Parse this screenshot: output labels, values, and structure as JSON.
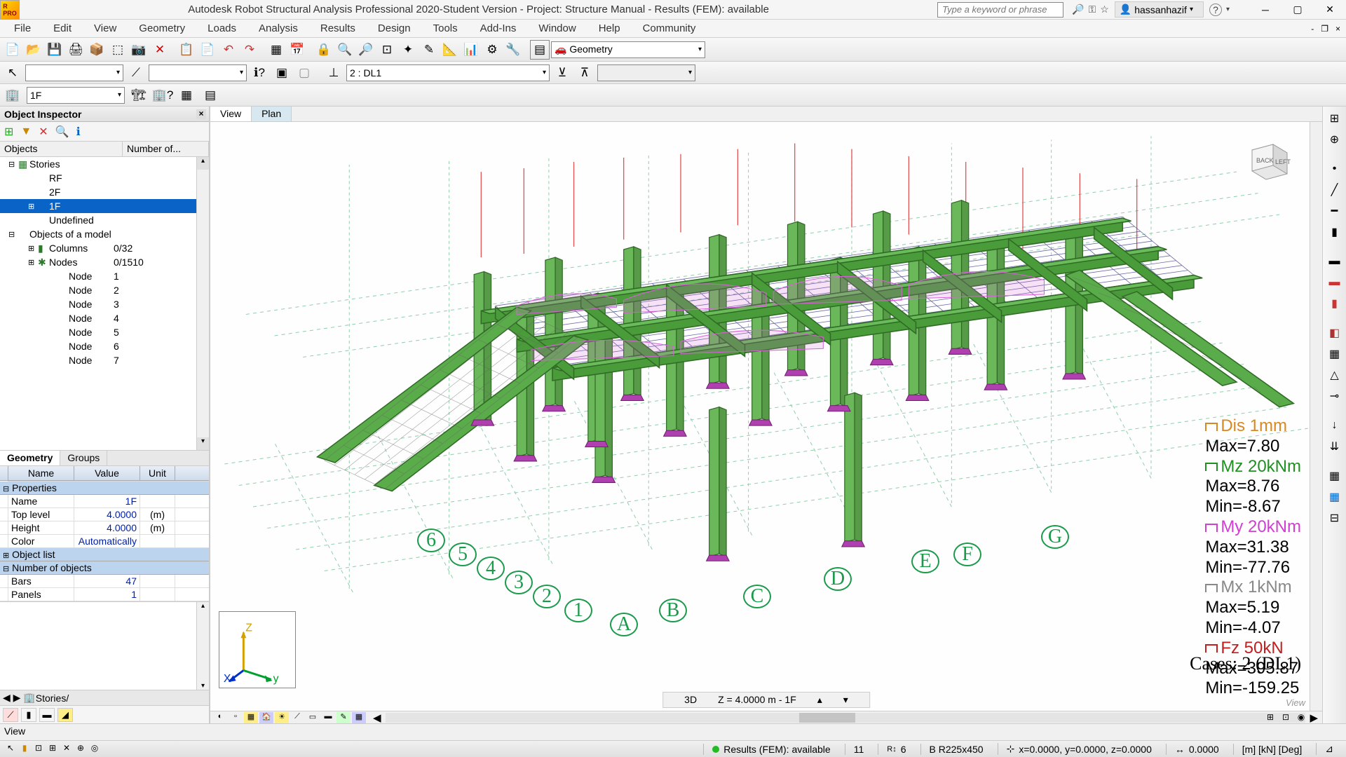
{
  "title": "Autodesk Robot Structural Analysis Professional 2020-Student Version - Project: Structure Manual - Results (FEM): available",
  "search_placeholder": "Type a keyword or phrase",
  "user": "hassanhazif",
  "menu": [
    "File",
    "Edit",
    "View",
    "Geometry",
    "Loads",
    "Analysis",
    "Results",
    "Design",
    "Tools",
    "Add-Ins",
    "Window",
    "Help",
    "Community"
  ],
  "layout_combo": "Geometry",
  "loadcase_combo": "2 : DL1",
  "story_combo": "1F",
  "inspector": {
    "title": "Object Inspector",
    "cols": [
      "Objects",
      "Number of..."
    ],
    "tree": [
      {
        "ind": 0,
        "exp": "⊟",
        "icon": "▦",
        "label": "Stories",
        "num": ""
      },
      {
        "ind": 2,
        "exp": "",
        "icon": "",
        "label": "RF",
        "num": ""
      },
      {
        "ind": 2,
        "exp": "",
        "icon": "",
        "label": "2F",
        "num": ""
      },
      {
        "ind": 2,
        "exp": "⊞",
        "icon": "",
        "label": "1F",
        "num": "",
        "sel": true
      },
      {
        "ind": 2,
        "exp": "",
        "icon": "",
        "label": "Undefined",
        "num": ""
      },
      {
        "ind": 0,
        "exp": "⊟",
        "icon": "",
        "label": "Objects of a model",
        "num": ""
      },
      {
        "ind": 2,
        "exp": "⊞",
        "icon": "▮",
        "label": "Columns",
        "num": "0/32"
      },
      {
        "ind": 2,
        "exp": "⊞",
        "icon": "✱",
        "label": "Nodes",
        "num": "0/1510"
      },
      {
        "ind": 4,
        "exp": "",
        "icon": "",
        "label": "Node",
        "num": "1"
      },
      {
        "ind": 4,
        "exp": "",
        "icon": "",
        "label": "Node",
        "num": "2"
      },
      {
        "ind": 4,
        "exp": "",
        "icon": "",
        "label": "Node",
        "num": "3"
      },
      {
        "ind": 4,
        "exp": "",
        "icon": "",
        "label": "Node",
        "num": "4"
      },
      {
        "ind": 4,
        "exp": "",
        "icon": "",
        "label": "Node",
        "num": "5"
      },
      {
        "ind": 4,
        "exp": "",
        "icon": "",
        "label": "Node",
        "num": "6"
      },
      {
        "ind": 4,
        "exp": "",
        "icon": "",
        "label": "Node",
        "num": "7"
      }
    ],
    "tabs": [
      "Geometry",
      "Groups"
    ],
    "grid_cols": [
      "Name",
      "Value",
      "Unit"
    ],
    "props": {
      "section1": "Properties",
      "rows1": [
        {
          "n": "Name",
          "v": "1F",
          "u": ""
        },
        {
          "n": "Top level",
          "v": "4.0000",
          "u": "(m)"
        },
        {
          "n": "Height",
          "v": "4.0000",
          "u": "(m)"
        },
        {
          "n": "Color",
          "v": "Automatically",
          "u": ""
        }
      ],
      "section2": "Object list",
      "section3": "Number of objects",
      "rows3": [
        {
          "n": "Bars",
          "v": "47",
          "u": ""
        },
        {
          "n": "Panels",
          "v": "1",
          "u": ""
        }
      ]
    },
    "stories_tab": "Stories"
  },
  "view_tabs": [
    "View",
    "Plan"
  ],
  "results": {
    "lines": [
      {
        "cls": "r1",
        "t": "Dis  1mm"
      },
      {
        "cls": "blk",
        "t": "Max=7.80"
      },
      {
        "cls": "r2",
        "t": "Mz  20kNm"
      },
      {
        "cls": "blk",
        "t": "Max=8.76"
      },
      {
        "cls": "blk",
        "t": "Min=-8.67"
      },
      {
        "cls": "r3",
        "t": "My  20kNm"
      },
      {
        "cls": "blk",
        "t": "Max=31.38"
      },
      {
        "cls": "blk",
        "t": "Min=-77.76"
      },
      {
        "cls": "r4",
        "t": "Mx  1kNm"
      },
      {
        "cls": "blk",
        "t": "Max=5.19"
      },
      {
        "cls": "blk",
        "t": "Min=-4.07"
      },
      {
        "cls": "r5",
        "t": "Fz  50kN"
      },
      {
        "cls": "blk",
        "t": "Max=395.87"
      },
      {
        "cls": "blk",
        "t": "Min=-159.25"
      }
    ],
    "cases": "Cases: 2 (DL1)"
  },
  "grid_labels_letters": [
    "A",
    "B",
    "C",
    "D",
    "E",
    "F",
    "G"
  ],
  "grid_labels_numbers": [
    "1",
    "2",
    "3",
    "4",
    "5",
    "6"
  ],
  "vp_status": {
    "a": "3D",
    "b": "Z = 4.0000 m - 1F"
  },
  "vp_view_label": "View",
  "viewbar": "View",
  "status": {
    "fem": "Results (FEM): available",
    "n1": "11",
    "n2": "6",
    "sect": "B R225x450",
    "coords": "x=0.0000, y=0.0000, z=0.0000",
    "val": "0.0000",
    "units": "[m] [kN] [Deg]"
  },
  "colors": {
    "beam": "#4a9b3a",
    "beam_edge": "#2f6b25",
    "column": "#6bb85a",
    "mesh": "#3a3a8a",
    "moment": "#d860d8",
    "load": "#e03838",
    "support": "#b040b0",
    "grid": "#3aa86a"
  }
}
